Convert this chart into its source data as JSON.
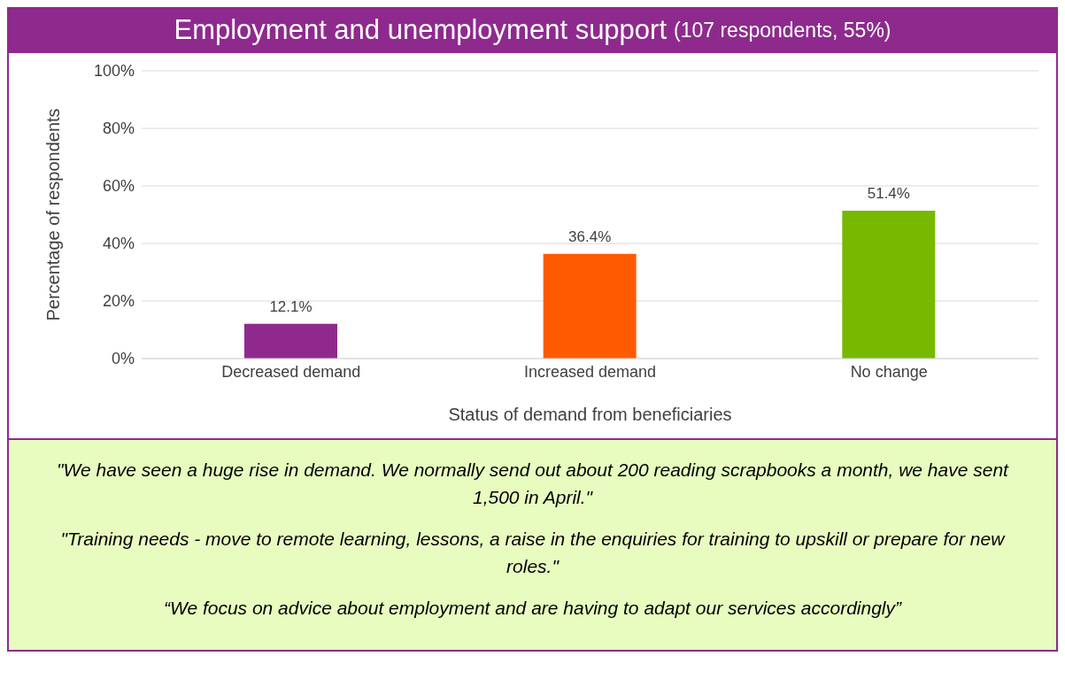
{
  "chart_data": {
    "type": "bar",
    "title": "Employment and unemployment support",
    "subtitle": "(107 respondents, 55%)",
    "xlabel": "Status of demand from beneficiaries",
    "ylabel": "Percentage of respondents",
    "categories": [
      "Decreased demand",
      "Increased demand",
      "No change"
    ],
    "values": [
      12.1,
      36.4,
      51.4
    ],
    "value_labels": [
      "12.1%",
      "36.4%",
      "51.4%"
    ],
    "colors": [
      "#8e2a8e",
      "#ff5a00",
      "#76b900"
    ],
    "ylim": [
      0,
      100
    ],
    "yticks": [
      {
        "value": 0,
        "label": "0%"
      },
      {
        "value": 20,
        "label": "20%"
      },
      {
        "value": 40,
        "label": "40%"
      },
      {
        "value": 60,
        "label": "60%"
      },
      {
        "value": 80,
        "label": "80%"
      },
      {
        "value": 100,
        "label": "100%"
      }
    ],
    "grid": "y",
    "annotations": [
      "\"We have seen a huge rise in demand. We normally send out about 200 reading scrapbooks a month, we have sent 1,500 in April.\"",
      "\"Training needs - move to remote learning, lessons, a raise in the enquiries for training to upskill or prepare for new roles.\"",
      "“We focus on advice about employment and are having to adapt our services accordingly”"
    ]
  }
}
